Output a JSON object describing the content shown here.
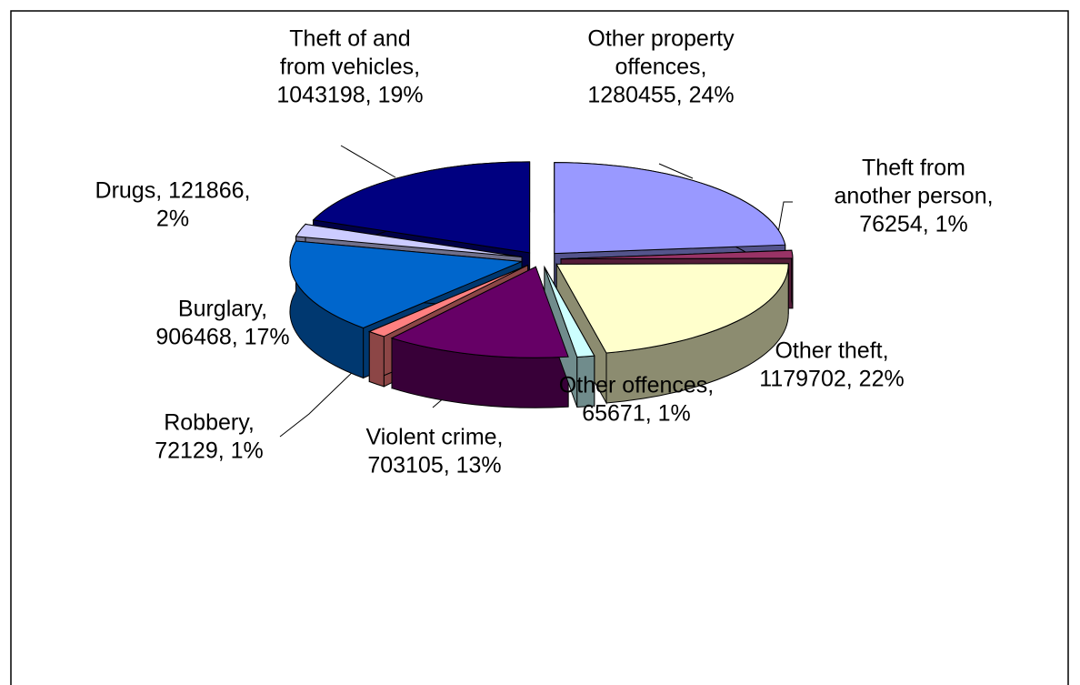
{
  "chart_data": {
    "type": "pie3d",
    "value_labels": [
      [
        "Other property",
        "offences,",
        "1280455, 24%"
      ],
      [
        "Theft from",
        "another person,",
        "76254, 1%"
      ],
      [
        "Other theft,",
        "1179702, 22%"
      ],
      [
        "Other offences,",
        "65671, 1%"
      ],
      [
        "Violent crime,",
        "703105, 13%"
      ],
      [
        "Robbery,",
        "72129, 1%"
      ],
      [
        "Burglary,",
        "906468, 17%"
      ],
      [
        "Drugs, 121866,",
        "2%"
      ],
      [
        "Theft of and",
        "from vehicles,",
        "1043198, 19%"
      ]
    ],
    "values": [
      1280455,
      76254,
      1179702,
      65671,
      703105,
      72129,
      906468,
      121866,
      1043198
    ],
    "colors": [
      "#9999ff",
      "#993366",
      "#ffffcc",
      "#ccffff",
      "#660066",
      "#ff8080",
      "#0066cc",
      "#ccccff",
      "#000080"
    ]
  }
}
